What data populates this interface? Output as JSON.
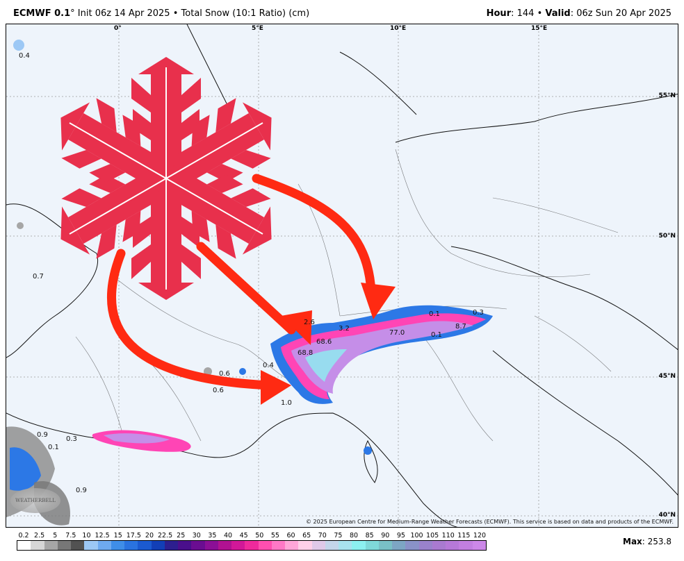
{
  "header": {
    "model": "ECMWF 0.1",
    "degree": "°",
    "init_text": "Init 06z 14 Apr 2025",
    "bullet": "•",
    "product": "Total Snow (10:1 Ratio) (cm)",
    "hour_label": "Hour",
    "hour_value": ": 144",
    "valid_label": "Valid",
    "valid_value": ": 06z Sun 20 Apr 2025"
  },
  "map": {
    "longitude_labels": [
      "0°",
      "5°E",
      "10°E",
      "15°E"
    ],
    "latitude_labels": [
      "55°N",
      "50°N",
      "45°N",
      "40°N"
    ],
    "value_labels": [
      "0.4",
      "0.7",
      "0.6",
      "0.4",
      "0.6",
      "1.0",
      "68.8",
      "68.6",
      "3.2",
      "77.0",
      "0.1",
      "8.7",
      "0.3",
      "0.1",
      "0.9",
      "0.3",
      "0.1",
      "0.9",
      "2.6"
    ],
    "copyright": "© 2025 European Centre for Medium-Range Weather Forecasts (ECMWF). This service is based on data and products of the ECMWF.",
    "logo_text": "WEATHERBELL",
    "colors": {
      "snowflake": "#e8304c",
      "arrow": "#ff2a12",
      "background": "#eef4fb",
      "snow_heavy": "#c58ee8",
      "snow_pink": "#ff45b5",
      "snow_blue": "#2c78e6"
    }
  },
  "colorbar": {
    "ticks": [
      "0.2",
      "2.5",
      "5",
      "7.5",
      "10",
      "12.5",
      "15",
      "17.5",
      "20",
      "22.5",
      "25",
      "30",
      "35",
      "40",
      "45",
      "50",
      "55",
      "60",
      "65",
      "70",
      "75",
      "80",
      "85",
      "90",
      "95",
      "100",
      "105",
      "110",
      "115",
      "120"
    ],
    "colors": [
      "#ffffff",
      "#d6d6d6",
      "#a6a6a6",
      "#777777",
      "#525252",
      "#9cc8f5",
      "#6eaaf0",
      "#3f8ee8",
      "#2a73df",
      "#1b5ad0",
      "#123fb6",
      "#2d1f8f",
      "#4a0f8c",
      "#6a0d91",
      "#8b0f96",
      "#b11291",
      "#d11898",
      "#ee2a9c",
      "#ff4fb0",
      "#ff78c6",
      "#ffa6d8",
      "#ffd0e8",
      "#e0c9e8",
      "#c4d5ea",
      "#a8e2ee",
      "#8cf0f0",
      "#7fd8d9",
      "#79c0c6",
      "#7da6c4",
      "#8a92c8",
      "#9a82cc",
      "#a97ad0",
      "#b679d8",
      "#c27fe0",
      "#cc88e8"
    ],
    "max_label": "Max",
    "max_value": ": 253.8"
  }
}
